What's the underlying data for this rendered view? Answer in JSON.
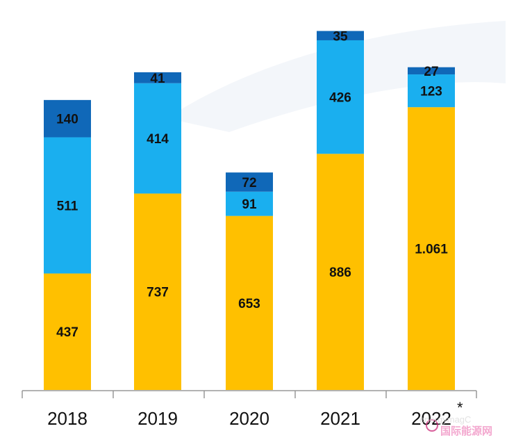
{
  "chart_data": {
    "type": "bar",
    "stacked": true,
    "categories": [
      "2018",
      "2019",
      "2020",
      "2021",
      "2022"
    ],
    "category_note": {
      "2022": "*"
    },
    "series": [
      {
        "name": "bottom",
        "color": "#FFC000",
        "values": [
          437,
          737,
          653,
          886,
          1061
        ],
        "labels": [
          "437",
          "737",
          "653",
          "886",
          "1.061"
        ]
      },
      {
        "name": "middle",
        "color": "#1AAFEF",
        "values": [
          511,
          414,
          91,
          426,
          123
        ],
        "labels": [
          "511",
          "414",
          "91",
          "426",
          "123"
        ]
      },
      {
        "name": "top",
        "color": "#1068B8",
        "values": [
          140,
          41,
          72,
          35,
          27
        ],
        "labels": [
          "140",
          "41",
          "72",
          "35",
          "27"
        ]
      }
    ],
    "ylim": [
      0,
      1400
    ],
    "grid": false,
    "legend": "none"
  },
  "watermark": {
    "text": "energymagC",
    "cn_text": "国际能源网"
  }
}
